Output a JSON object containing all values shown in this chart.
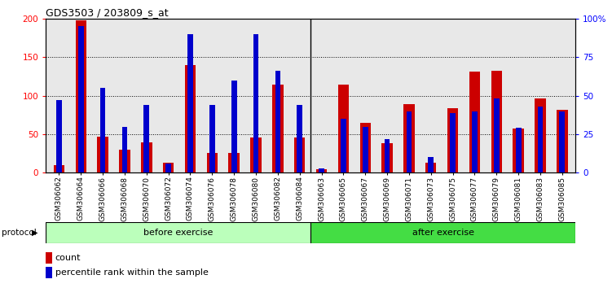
{
  "title": "GDS3503 / 203809_s_at",
  "samples": [
    "GSM306062",
    "GSM306064",
    "GSM306066",
    "GSM306068",
    "GSM306070",
    "GSM306072",
    "GSM306074",
    "GSM306076",
    "GSM306078",
    "GSM306080",
    "GSM306082",
    "GSM306084",
    "GSM306063",
    "GSM306065",
    "GSM306067",
    "GSM306069",
    "GSM306071",
    "GSM306073",
    "GSM306075",
    "GSM306077",
    "GSM306079",
    "GSM306081",
    "GSM306083",
    "GSM306085"
  ],
  "count_values": [
    10,
    198,
    47,
    30,
    40,
    13,
    140,
    26,
    26,
    46,
    115,
    46,
    5,
    115,
    65,
    38,
    89,
    13,
    84,
    131,
    132,
    57,
    97,
    82
  ],
  "percentile_values": [
    47,
    95,
    55,
    30,
    44,
    6,
    90,
    44,
    60,
    90,
    66,
    44,
    3,
    35,
    30,
    22,
    40,
    10,
    39,
    40,
    48,
    29,
    43,
    40
  ],
  "before_exercise_count": 12,
  "after_exercise_count": 12,
  "ylim_left": [
    0,
    200
  ],
  "ylim_right": [
    0,
    100
  ],
  "yticks_left": [
    0,
    50,
    100,
    150,
    200
  ],
  "yticks_right": [
    0,
    25,
    50,
    75,
    100
  ],
  "yticklabels_right": [
    "0",
    "25",
    "50",
    "75",
    "100%"
  ],
  "grid_values": [
    50,
    100,
    150
  ],
  "bar_color_red": "#cc0000",
  "bar_color_blue": "#0000cc",
  "before_bg": "#bbffbb",
  "after_bg": "#44dd44",
  "protocol_label": "protocol",
  "before_label": "before exercise",
  "after_label": "after exercise",
  "legend_count": "count",
  "legend_pct": "percentile rank within the sample",
  "plot_bg": "#e8e8e8",
  "bar_width": 0.5,
  "blue_bar_width": 0.25
}
